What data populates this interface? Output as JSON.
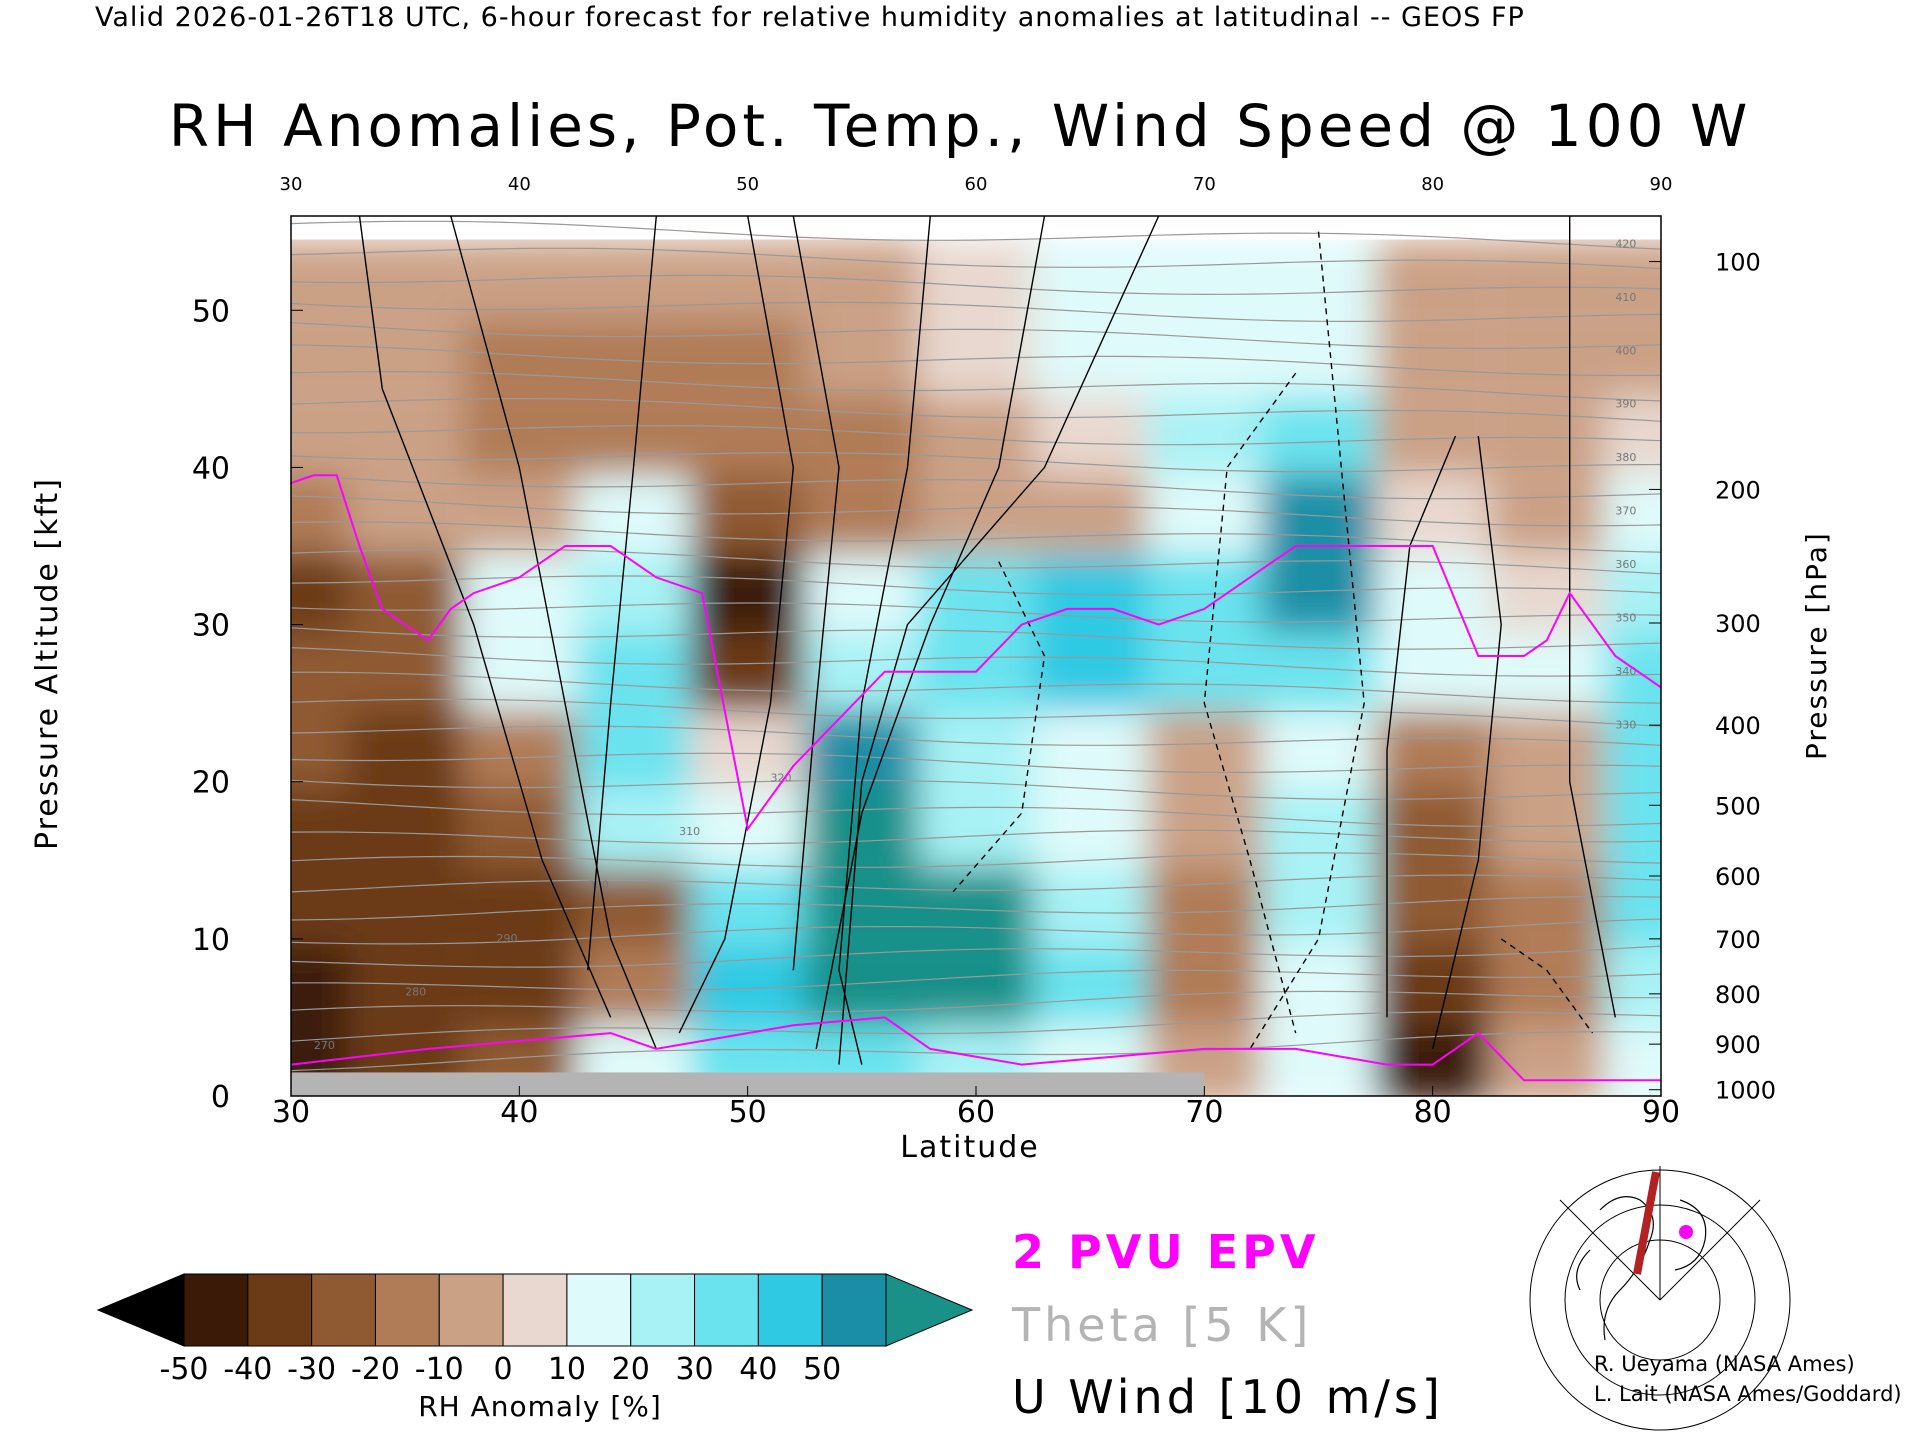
{
  "header": {
    "valid_line": "Valid 2026-01-26T18 UTC, 6-hour forecast for relative humidity anomalies at latitudinal -- GEOS FP",
    "title": "RH Anomalies, Pot. Temp., Wind Speed @ 100 W"
  },
  "axes": {
    "x_label": "Latitude",
    "y_left_label": "Pressure Altitude [kft]",
    "y_right_label": "Pressure [hPa]"
  },
  "colorbar": {
    "label": "RH Anomaly [%]",
    "ticks": [
      "-50",
      "-40",
      "-30",
      "-20",
      "-10",
      "0",
      "10",
      "20",
      "30",
      "40",
      "50"
    ],
    "colors": [
      "#000000",
      "#3b1a08",
      "#6b3a17",
      "#8f5a32",
      "#b07c57",
      "#cba186",
      "#e8d8cf",
      "#dffafa",
      "#a8f2f5",
      "#6be3ee",
      "#2fc9e3",
      "#1a8ea6",
      "#199088"
    ]
  },
  "legend": {
    "epv": "2 PVU EPV",
    "epv_color": "#ff00ff",
    "theta": "Theta [5 K]",
    "theta_color": "#b4b4b4",
    "uwind": "U Wind [10 m/s]"
  },
  "credits": {
    "line1": "R. Ueyama (NASA Ames)",
    "line2": "L. Lait (NASA Ames/Goddard)"
  },
  "chart_data": {
    "type": "heatmap",
    "title": "RH Anomalies, Pot. Temp., Wind Speed @ 100 W",
    "xlabel": "Latitude",
    "ylabel": "Pressure Altitude [kft]",
    "xlim": [
      30,
      90
    ],
    "ylim": [
      0,
      56
    ],
    "x_ticks": [
      30,
      40,
      50,
      60,
      70,
      80,
      90
    ],
    "y_ticks": [
      0,
      10,
      20,
      30,
      40,
      50
    ],
    "right_axis_pressure_ticks": [
      100,
      200,
      300,
      400,
      500,
      600,
      700,
      800,
      900,
      1000
    ],
    "right_axis_pressure_positions_kft": [
      53.1,
      38.6,
      30.1,
      23.6,
      18.5,
      14.0,
      10.0,
      6.5,
      3.3,
      0.4
    ],
    "colorbar_range": [
      -50,
      50
    ],
    "rh_anomaly_field": {
      "lat": [
        30,
        35,
        40,
        45,
        50,
        55,
        60,
        65,
        70,
        75,
        80,
        85,
        90
      ],
      "alt_kft": [
        2,
        7,
        12,
        17,
        22,
        27,
        32,
        37,
        42,
        47,
        52
      ],
      "values": [
        [
          -45,
          -35,
          -25,
          10,
          25,
          30,
          15,
          5,
          -10,
          5,
          -45,
          -10,
          5
        ],
        [
          -45,
          -40,
          -40,
          -15,
          35,
          55,
          55,
          30,
          -20,
          10,
          -40,
          -20,
          15
        ],
        [
          -40,
          -40,
          -40,
          -30,
          30,
          55,
          55,
          20,
          -20,
          15,
          -30,
          -20,
          25
        ],
        [
          -35,
          -40,
          -30,
          20,
          10,
          55,
          20,
          10,
          -10,
          20,
          -30,
          -10,
          30
        ],
        [
          -30,
          -35,
          -20,
          30,
          0,
          45,
          15,
          10,
          -5,
          10,
          -20,
          -5,
          30
        ],
        [
          -30,
          -25,
          10,
          25,
          -35,
          20,
          30,
          40,
          25,
          30,
          10,
          5,
          30
        ],
        [
          -40,
          -25,
          5,
          20,
          -45,
          10,
          25,
          40,
          30,
          45,
          5,
          0,
          20
        ],
        [
          -20,
          -10,
          -10,
          10,
          -30,
          -20,
          -10,
          -5,
          10,
          50,
          0,
          -5,
          10
        ],
        [
          -10,
          -10,
          -20,
          -20,
          -20,
          -15,
          -5,
          0,
          15,
          30,
          -5,
          -5,
          0
        ],
        [
          -5,
          -10,
          -15,
          -15,
          -15,
          -10,
          0,
          5,
          10,
          10,
          -5,
          -5,
          -5
        ],
        [
          -5,
          -10,
          -10,
          -10,
          -10,
          -5,
          0,
          5,
          5,
          5,
          -5,
          -5,
          -5
        ]
      ]
    },
    "theta_contours_K": [
      270,
      280,
      290,
      300,
      310,
      320,
      330,
      340,
      350,
      360,
      370,
      380,
      390,
      400,
      410,
      420
    ],
    "u_wind_contours_ms": [
      -10,
      0,
      10,
      20,
      30
    ],
    "series": [
      {
        "name": "2 PVU EPV",
        "lat": [
          30,
          31,
          32,
          33,
          34,
          35,
          36,
          37,
          38,
          40,
          42,
          44,
          46,
          48,
          50,
          52,
          54,
          56,
          58,
          60,
          62,
          64,
          66,
          68,
          70,
          72,
          74,
          76,
          78,
          80,
          82,
          84,
          85,
          86,
          88,
          90
        ],
        "alt_kft": [
          39,
          39.5,
          39.5,
          35,
          31,
          30,
          29,
          31,
          32,
          33,
          35,
          35,
          33,
          32,
          17,
          21,
          24,
          27,
          27,
          27,
          30,
          31,
          31,
          30,
          31,
          33,
          35,
          35,
          35,
          35,
          28,
          28,
          29,
          32,
          28,
          26
        ]
      }
    ]
  },
  "inset_map": {
    "marker_color": "#ff00ff",
    "line_color": "#b22222"
  }
}
